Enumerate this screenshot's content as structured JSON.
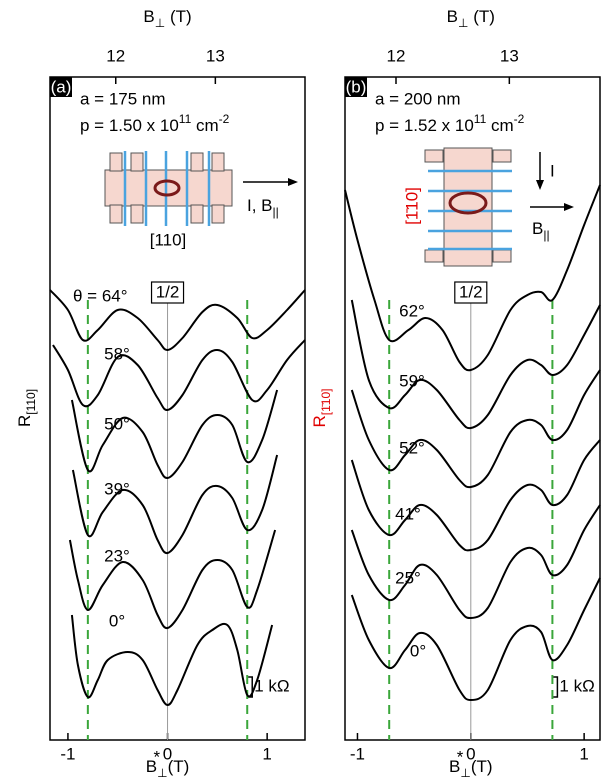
{
  "chart_data": [
    {
      "type": "line",
      "panel_label": "(a)",
      "sample": "a = 175 nm",
      "density": {
        "text": "p = 1.50 x 10",
        "exp": "11",
        "unit": " cm",
        "unit_exp": "-2"
      },
      "filling": "1/2",
      "xlabel": {
        "base": "B",
        "sub": "⊥",
        "sup": "*",
        "unit": "(T)"
      },
      "x2label": {
        "base": "B",
        "sub": "⊥",
        "unit": " (T)"
      },
      "ylabel": {
        "base": "R",
        "sub": "[110]"
      },
      "ylabel_color": "#000000",
      "xlim": [
        -1.18,
        1.38
      ],
      "xticks": [
        -1,
        0,
        1
      ],
      "x2lim": [
        11.34,
        13.9
      ],
      "x2ticks": [
        12,
        13
      ],
      "ylim": [
        0,
        33.15
      ],
      "scale_bar": {
        "value": 1,
        "label": "1 kΩ"
      },
      "inset": {
        "current": "I, B",
        "current_sub": "||",
        "direction": "[110]"
      },
      "vlines": [
        -0.8,
        0.8
      ],
      "vline_color": "#3aa63a",
      "series": [
        {
          "name": "θ = 64°",
          "color": "#000000",
          "x": [
            -1.18,
            -1.0,
            -0.85,
            -0.7,
            -0.5,
            -0.3,
            -0.1,
            0,
            0.15,
            0.35,
            0.5,
            0.7,
            0.85,
            1.0,
            1.2,
            1.38
          ],
          "values": [
            22.5,
            21.5,
            20,
            20.5,
            21.5,
            21.1,
            20,
            19.5,
            20.1,
            21.4,
            21.75,
            21.1,
            20.1,
            20.5,
            21.5,
            22.5
          ]
        },
        {
          "name": "58°",
          "color": "#000000",
          "x": [
            -1.15,
            -1.0,
            -0.85,
            -0.7,
            -0.5,
            -0.3,
            -0.1,
            0,
            0.15,
            0.35,
            0.5,
            0.65,
            0.85,
            1.0,
            1.2,
            1.38
          ],
          "values": [
            19.75,
            18.5,
            16.75,
            17.25,
            19.15,
            18.75,
            17.1,
            16.5,
            17.25,
            19,
            19.5,
            18.9,
            17,
            17.5,
            19,
            20
          ]
        },
        {
          "name": "50°",
          "color": "#000000",
          "x": [
            -0.96,
            -0.8,
            -0.65,
            -0.45,
            -0.25,
            -0.1,
            0,
            0.15,
            0.35,
            0.5,
            0.65,
            0.8,
            0.95,
            1.1
          ],
          "values": [
            17,
            13.5,
            14.75,
            16.1,
            15.4,
            13.75,
            13.1,
            13.9,
            15.75,
            16.25,
            15.75,
            13.9,
            15,
            17.5
          ]
        },
        {
          "name": "39°",
          "color": "#000000",
          "x": [
            -0.95,
            -0.8,
            -0.65,
            -0.45,
            -0.25,
            -0.1,
            0,
            0.15,
            0.35,
            0.5,
            0.65,
            0.8,
            0.95,
            1.1
          ],
          "values": [
            13.5,
            10.25,
            11.4,
            12.5,
            11.75,
            10,
            9.35,
            10.25,
            12.25,
            12.7,
            12.1,
            10.5,
            11.5,
            14.25
          ]
        },
        {
          "name": "23°",
          "color": "#000000",
          "x": [
            -0.98,
            -0.9,
            -0.8,
            -0.65,
            -0.45,
            -0.25,
            -0.1,
            0,
            0.15,
            0.35,
            0.5,
            0.65,
            0.8,
            0.9,
            1.08
          ],
          "values": [
            10,
            8,
            6.5,
            7.75,
            8.9,
            8,
            6.25,
            5.6,
            6.5,
            8.5,
            9,
            8.5,
            6.65,
            7.5,
            10.5
          ]
        },
        {
          "name": "0°",
          "color": "#000000",
          "x": [
            -0.96,
            -0.9,
            -0.8,
            -0.7,
            -0.6,
            -0.4,
            -0.25,
            -0.1,
            0,
            0.1,
            0.3,
            0.45,
            0.6,
            0.7,
            0.8,
            0.9,
            1.05
          ],
          "values": [
            6.25,
            3.75,
            2.15,
            3,
            4,
            4.4,
            4,
            2.5,
            1.75,
            2.5,
            4.75,
            5.5,
            5.75,
            4.5,
            2.25,
            3,
            5.75
          ]
        }
      ]
    },
    {
      "type": "line",
      "panel_label": "(b)",
      "sample": "a = 200 nm",
      "density": {
        "text": "p = 1.52 x 10",
        "exp": "11",
        "unit": " cm",
        "unit_exp": "-2"
      },
      "filling": "1/2",
      "xlabel": {
        "base": "B",
        "sub": "⊥",
        "sup": "*",
        "unit": "(T)"
      },
      "x2label": {
        "base": "B",
        "sub": "⊥",
        "unit": " (T)"
      },
      "ylabel": {
        "base": "R",
        "sub": "[1̄10]"
      },
      "ylabel_color": "#e00000",
      "xlim": [
        -1.11,
        1.14
      ],
      "xticks": [
        -1,
        0,
        1
      ],
      "x2lim": [
        11.55,
        13.8
      ],
      "x2ticks": [
        12,
        13
      ],
      "ylim": [
        0,
        33.15
      ],
      "scale_bar": {
        "value": 1,
        "label": "1 kΩ"
      },
      "inset": {
        "current": "I",
        "field": "B",
        "field_sub": "||",
        "direction": "[1̄10]"
      },
      "vlines": [
        -0.72,
        0.72
      ],
      "vline_color": "#3aa63a",
      "series": [
        {
          "name": "62°",
          "color": "#000000",
          "x": [
            -1.11,
            -1.0,
            -0.85,
            -0.72,
            -0.55,
            -0.4,
            -0.25,
            -0.1,
            0,
            0.15,
            0.35,
            0.5,
            0.62,
            0.72,
            0.85,
            1.0,
            1.14
          ],
          "values": [
            27.5,
            25,
            22,
            20,
            20.5,
            21.1,
            20.5,
            18.9,
            18.5,
            19.25,
            21.5,
            22.25,
            22.4,
            22,
            23.5,
            25.75,
            27.75
          ]
        },
        {
          "name": "59°",
          "color": "#000000",
          "x": [
            -1.05,
            -0.9,
            -0.72,
            -0.58,
            -0.45,
            -0.3,
            -0.1,
            0,
            0.15,
            0.35,
            0.5,
            0.62,
            0.72,
            0.85,
            1.0,
            1.14
          ],
          "values": [
            22,
            18,
            16.6,
            17.25,
            18,
            17.5,
            16,
            15.6,
            16.25,
            18.25,
            19,
            18.75,
            18.25,
            18.75,
            20.25,
            21.75
          ]
        },
        {
          "name": "52°",
          "color": "#000000",
          "x": [
            -1.05,
            -0.9,
            -0.72,
            -0.58,
            -0.45,
            -0.3,
            -0.1,
            0,
            0.15,
            0.35,
            0.5,
            0.62,
            0.72,
            0.85,
            1.0,
            1.14
          ],
          "values": [
            17.5,
            15,
            13.5,
            14.25,
            15,
            14.5,
            13,
            12.65,
            13.25,
            15.4,
            16,
            15.75,
            15,
            15.5,
            17.25,
            18.5
          ]
        },
        {
          "name": "41°",
          "color": "#000000",
          "x": [
            -1.05,
            -0.9,
            -0.72,
            -0.58,
            -0.45,
            -0.3,
            -0.1,
            0,
            0.15,
            0.35,
            0.5,
            0.62,
            0.72,
            0.85,
            1.0,
            1.14
          ],
          "values": [
            14,
            11.5,
            10.25,
            11,
            11.75,
            11.25,
            9.75,
            9.5,
            10,
            12,
            12.75,
            12.5,
            11.75,
            12.25,
            14,
            15
          ]
        },
        {
          "name": "25°",
          "color": "#000000",
          "x": [
            -1.05,
            -0.9,
            -0.72,
            -0.58,
            -0.45,
            -0.3,
            -0.1,
            0,
            0.15,
            0.35,
            0.5,
            0.62,
            0.72,
            0.85,
            1.0,
            1.14
          ],
          "values": [
            10.5,
            8.25,
            7,
            7.75,
            8.75,
            8.25,
            6.5,
            6.1,
            6.6,
            8.9,
            9.6,
            9.25,
            8.25,
            8.75,
            10.5,
            11.75
          ]
        },
        {
          "name": "0°",
          "color": "#000000",
          "x": [
            -1.05,
            -0.9,
            -0.72,
            -0.58,
            -0.45,
            -0.3,
            -0.1,
            0,
            0.15,
            0.35,
            0.5,
            0.62,
            0.72,
            0.85,
            1.0,
            1.14
          ],
          "values": [
            7.25,
            5,
            3.6,
            4.5,
            5.35,
            4.75,
            2.5,
            2,
            2.5,
            5,
            5.7,
            5.4,
            4,
            4.75,
            6.5,
            8.1
          ]
        }
      ]
    }
  ]
}
